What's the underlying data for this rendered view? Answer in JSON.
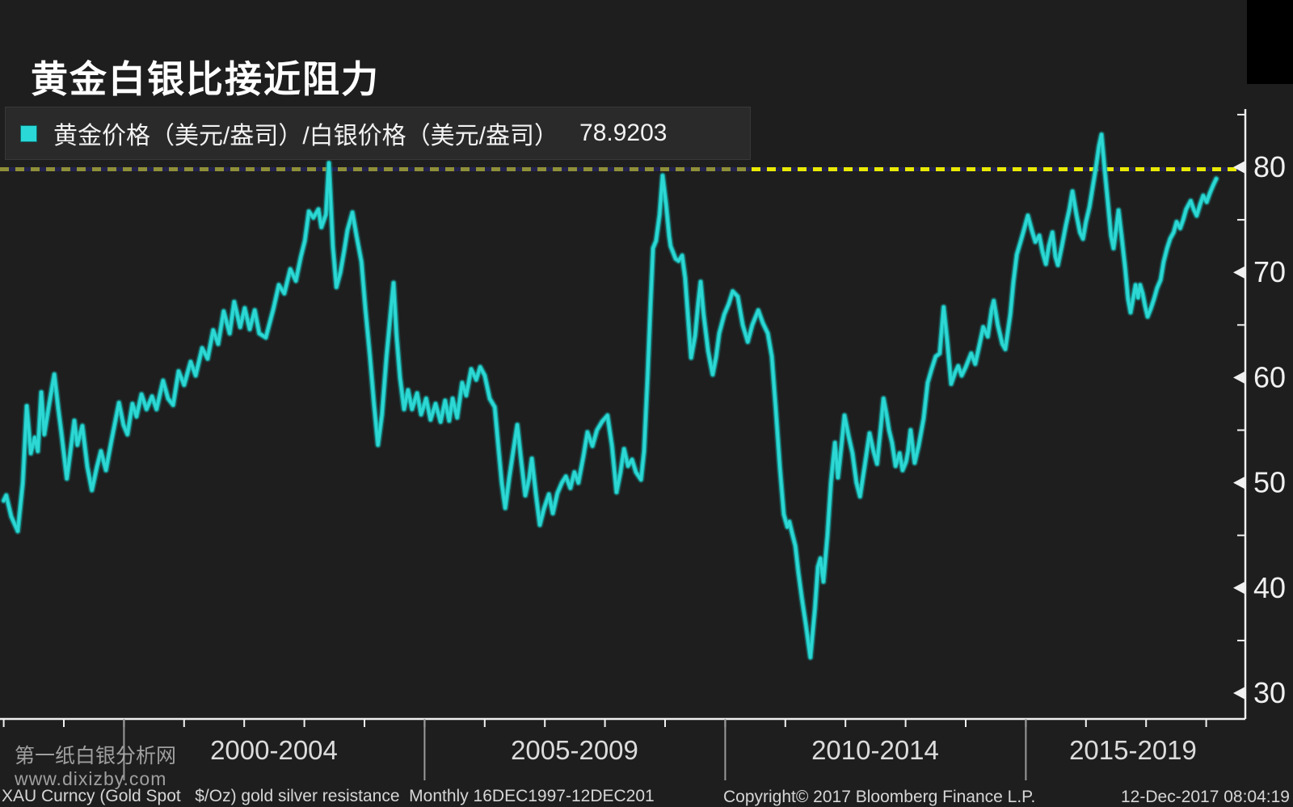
{
  "title": {
    "text": "黄金白银比接近阻力"
  },
  "legend": {
    "label": "黄金价格（美元/盎司）/白银价格（美元/盎司）",
    "value": "78.9203",
    "marker_color": "#2bd8d8"
  },
  "x_axis": {
    "period_labels": [
      "2000-2004",
      "2005-2009",
      "2010-2014",
      "2015-2019"
    ],
    "divider_years": [
      2000,
      2005,
      2010,
      2015
    ]
  },
  "footer": {
    "left": "XAU Curncy (Gold Spot   $/Oz) gold silver resistance  Monthly 16DEC1997-12DEC201",
    "copyright": "Copyright© 2017 Bloomberg Finance L.P.",
    "timestamp": "12-Dec-2017 08:04:19"
  },
  "watermark": {
    "line1": "第一纸白银分析网",
    "line2": "www.dixizby.com"
  },
  "colors": {
    "background": "#1e1e1e",
    "line": "#2dd8d4",
    "resistance_bright": "#e9e905",
    "resistance_muted": "#8f8f3a",
    "axis": "#f0f0f0"
  },
  "chart_data": {
    "type": "line",
    "title": "黄金白银比接近阻力",
    "series_name": "黄金价格（美元/盎司）/白银价格（美元/盎司）",
    "last_value": 78.9203,
    "resistance_level": 80,
    "x_unit": "months since Dec-1997, monthly data 16DEC1997-12DEC2017",
    "x_period_labels": [
      "2000-2004",
      "2005-2009",
      "2010-2014",
      "2015-2019"
    ],
    "ylim": [
      27.5,
      85.5
    ],
    "y_axis": {
      "major_ticks": [
        80,
        70,
        60,
        50,
        40,
        30
      ],
      "minor_ticks": [
        85,
        75,
        65,
        55,
        45,
        35
      ]
    },
    "grid": false,
    "legend_position": "top-left",
    "points": [
      [
        0,
        48.3
      ],
      [
        0.5,
        48.8
      ],
      [
        1.5,
        46.8
      ],
      [
        2.8,
        45.4
      ],
      [
        3.8,
        50.0
      ],
      [
        4.6,
        57.3
      ],
      [
        5.4,
        52.8
      ],
      [
        6.2,
        54.3
      ],
      [
        6.8,
        53.0
      ],
      [
        7.5,
        58.6
      ],
      [
        8.1,
        54.6
      ],
      [
        8.9,
        57.0
      ],
      [
        10.1,
        60.3
      ],
      [
        10.9,
        57.0
      ],
      [
        11.5,
        54.8
      ],
      [
        12.6,
        50.4
      ],
      [
        13.6,
        54.0
      ],
      [
        14.1,
        55.9
      ],
      [
        14.7,
        53.6
      ],
      [
        15.7,
        55.4
      ],
      [
        16.7,
        51.5
      ],
      [
        17.6,
        49.3
      ],
      [
        18.6,
        51.5
      ],
      [
        19.4,
        53.0
      ],
      [
        20.4,
        51.2
      ],
      [
        21.5,
        54.0
      ],
      [
        23.0,
        57.6
      ],
      [
        23.9,
        55.5
      ],
      [
        24.7,
        54.6
      ],
      [
        25.7,
        57.5
      ],
      [
        26.5,
        56.3
      ],
      [
        27.5,
        58.4
      ],
      [
        28.5,
        57.0
      ],
      [
        29.6,
        58.2
      ],
      [
        30.5,
        57.0
      ],
      [
        31.8,
        59.7
      ],
      [
        32.8,
        58.0
      ],
      [
        33.8,
        57.4
      ],
      [
        34.9,
        60.6
      ],
      [
        36.0,
        59.3
      ],
      [
        37.3,
        61.5
      ],
      [
        38.3,
        60.2
      ],
      [
        39.6,
        62.8
      ],
      [
        40.7,
        61.8
      ],
      [
        41.8,
        64.5
      ],
      [
        42.8,
        63.2
      ],
      [
        43.9,
        66.3
      ],
      [
        45.1,
        64.2
      ],
      [
        46.0,
        67.2
      ],
      [
        47.2,
        64.8
      ],
      [
        48.1,
        66.6
      ],
      [
        49.1,
        64.6
      ],
      [
        50.1,
        66.4
      ],
      [
        51.0,
        64.2
      ],
      [
        52.3,
        63.8
      ],
      [
        53.8,
        66.5
      ],
      [
        54.9,
        68.8
      ],
      [
        56.0,
        68.0
      ],
      [
        57.2,
        70.3
      ],
      [
        58.3,
        69.2
      ],
      [
        59.3,
        71.5
      ],
      [
        60.1,
        73.0
      ],
      [
        60.9,
        75.8
      ],
      [
        61.8,
        75.2
      ],
      [
        62.8,
        76.0
      ],
      [
        63.4,
        74.3
      ],
      [
        64.3,
        75.5
      ],
      [
        64.9,
        80.4
      ],
      [
        65.7,
        72.5
      ],
      [
        66.4,
        68.6
      ],
      [
        67.2,
        70.0
      ],
      [
        68.0,
        72.2
      ],
      [
        68.6,
        74.0
      ],
      [
        69.6,
        75.7
      ],
      [
        70.4,
        73.5
      ],
      [
        71.4,
        71.0
      ],
      [
        72.2,
        66.5
      ],
      [
        73.1,
        62.0
      ],
      [
        73.9,
        57.5
      ],
      [
        74.7,
        53.6
      ],
      [
        75.5,
        56.5
      ],
      [
        76.4,
        62.0
      ],
      [
        77.2,
        66.0
      ],
      [
        77.8,
        69.0
      ],
      [
        78.4,
        64.0
      ],
      [
        79.1,
        60.0
      ],
      [
        79.9,
        57.0
      ],
      [
        80.7,
        58.8
      ],
      [
        81.5,
        57.0
      ],
      [
        82.5,
        58.5
      ],
      [
        83.3,
        56.5
      ],
      [
        84.3,
        58.0
      ],
      [
        85.2,
        56.0
      ],
      [
        86.2,
        57.5
      ],
      [
        87.2,
        55.8
      ],
      [
        88.1,
        57.8
      ],
      [
        88.9,
        55.9
      ],
      [
        89.6,
        58.0
      ],
      [
        90.5,
        56.2
      ],
      [
        91.5,
        59.5
      ],
      [
        92.3,
        58.3
      ],
      [
        93.3,
        60.8
      ],
      [
        94.3,
        59.8
      ],
      [
        95.1,
        61.0
      ],
      [
        96.0,
        60.2
      ],
      [
        97.0,
        58.0
      ],
      [
        98.0,
        57.2
      ],
      [
        98.8,
        53.0
      ],
      [
        99.4,
        50.0
      ],
      [
        100.1,
        47.6
      ],
      [
        100.9,
        50.5
      ],
      [
        101.7,
        53.0
      ],
      [
        102.5,
        55.5
      ],
      [
        103.3,
        52.0
      ],
      [
        104.1,
        48.8
      ],
      [
        104.9,
        50.5
      ],
      [
        105.4,
        52.3
      ],
      [
        106.2,
        49.0
      ],
      [
        107.0,
        46.0
      ],
      [
        107.8,
        47.5
      ],
      [
        108.8,
        48.9
      ],
      [
        109.6,
        47.1
      ],
      [
        110.5,
        49.0
      ],
      [
        111.4,
        50.0
      ],
      [
        112.2,
        50.6
      ],
      [
        113.1,
        49.5
      ],
      [
        113.9,
        51.0
      ],
      [
        114.7,
        50.0
      ],
      [
        115.7,
        52.5
      ],
      [
        116.5,
        54.8
      ],
      [
        117.5,
        53.5
      ],
      [
        118.4,
        55.0
      ],
      [
        119.4,
        55.8
      ],
      [
        120.5,
        56.4
      ],
      [
        121.4,
        53.5
      ],
      [
        122.3,
        49.1
      ],
      [
        123.1,
        51.0
      ],
      [
        123.8,
        53.2
      ],
      [
        124.6,
        51.6
      ],
      [
        125.4,
        52.2
      ],
      [
        126.2,
        51.0
      ],
      [
        127.2,
        50.3
      ],
      [
        127.8,
        53.0
      ],
      [
        128.5,
        60.0
      ],
      [
        129.1,
        67.0
      ],
      [
        129.6,
        72.3
      ],
      [
        130.2,
        73.0
      ],
      [
        130.9,
        75.5
      ],
      [
        131.5,
        79.2
      ],
      [
        132.2,
        76.5
      ],
      [
        132.8,
        73.5
      ],
      [
        133.1,
        72.5
      ],
      [
        134.1,
        71.3
      ],
      [
        134.7,
        71.1
      ],
      [
        135.4,
        71.6
      ],
      [
        136.0,
        69.5
      ],
      [
        136.7,
        65.0
      ],
      [
        137.2,
        61.9
      ],
      [
        138.0,
        64.0
      ],
      [
        138.6,
        67.0
      ],
      [
        139.1,
        69.1
      ],
      [
        139.7,
        66.0
      ],
      [
        140.6,
        62.5
      ],
      [
        141.5,
        60.3
      ],
      [
        142.2,
        62.0
      ],
      [
        142.8,
        64.2
      ],
      [
        143.8,
        66.0
      ],
      [
        144.7,
        67.0
      ],
      [
        145.5,
        68.2
      ],
      [
        146.5,
        67.7
      ],
      [
        147.5,
        65.0
      ],
      [
        148.5,
        63.4
      ],
      [
        149.4,
        65.0
      ],
      [
        150.6,
        66.4
      ],
      [
        151.5,
        65.2
      ],
      [
        152.5,
        64.2
      ],
      [
        153.3,
        62.0
      ],
      [
        154.1,
        57.0
      ],
      [
        154.9,
        51.5
      ],
      [
        155.7,
        47.0
      ],
      [
        156.4,
        45.8
      ],
      [
        156.8,
        46.3
      ],
      [
        157.3,
        45.3
      ],
      [
        158.0,
        44.0
      ],
      [
        158.6,
        41.5
      ],
      [
        159.3,
        39.0
      ],
      [
        160.1,
        36.5
      ],
      [
        161.0,
        33.4
      ],
      [
        161.9,
        38.0
      ],
      [
        162.5,
        42.0
      ],
      [
        163.0,
        42.8
      ],
      [
        163.6,
        40.6
      ],
      [
        164.4,
        45.0
      ],
      [
        165.1,
        50.0
      ],
      [
        165.9,
        53.8
      ],
      [
        166.5,
        50.5
      ],
      [
        167.2,
        53.5
      ],
      [
        167.8,
        56.4
      ],
      [
        168.6,
        54.5
      ],
      [
        169.4,
        52.8
      ],
      [
        170.2,
        50.0
      ],
      [
        170.9,
        48.7
      ],
      [
        171.8,
        51.5
      ],
      [
        172.8,
        54.7
      ],
      [
        173.6,
        53.0
      ],
      [
        174.3,
        51.8
      ],
      [
        175.1,
        55.5
      ],
      [
        175.6,
        58.0
      ],
      [
        176.2,
        56.5
      ],
      [
        176.7,
        55.0
      ],
      [
        177.3,
        53.8
      ],
      [
        178.0,
        51.6
      ],
      [
        178.8,
        52.8
      ],
      [
        179.4,
        51.2
      ],
      [
        180.1,
        52.0
      ],
      [
        180.5,
        53.0
      ],
      [
        181.0,
        55.0
      ],
      [
        181.8,
        51.9
      ],
      [
        182.6,
        53.5
      ],
      [
        183.6,
        56.1
      ],
      [
        184.4,
        59.5
      ],
      [
        185.2,
        60.8
      ],
      [
        186.0,
        62.0
      ],
      [
        186.8,
        62.3
      ],
      [
        187.6,
        66.7
      ],
      [
        188.3,
        63.5
      ],
      [
        189.1,
        59.4
      ],
      [
        189.9,
        60.5
      ],
      [
        190.5,
        61.1
      ],
      [
        191.2,
        60.2
      ],
      [
        192.0,
        61.0
      ],
      [
        193.1,
        62.3
      ],
      [
        193.9,
        61.3
      ],
      [
        194.7,
        63.0
      ],
      [
        195.5,
        64.8
      ],
      [
        196.4,
        63.9
      ],
      [
        197.2,
        66.5
      ],
      [
        197.6,
        67.3
      ],
      [
        198.4,
        65.0
      ],
      [
        199.3,
        63.2
      ],
      [
        199.9,
        62.7
      ],
      [
        200.9,
        66.0
      ],
      [
        201.5,
        69.0
      ],
      [
        202.2,
        71.7
      ],
      [
        203.0,
        73.0
      ],
      [
        203.6,
        74.0
      ],
      [
        204.4,
        75.4
      ],
      [
        205.2,
        74.0
      ],
      [
        205.9,
        72.9
      ],
      [
        206.7,
        73.5
      ],
      [
        207.3,
        72.0
      ],
      [
        208.0,
        70.8
      ],
      [
        208.6,
        72.5
      ],
      [
        209.3,
        73.8
      ],
      [
        209.9,
        71.5
      ],
      [
        210.4,
        70.7
      ],
      [
        211.2,
        72.5
      ],
      [
        212.0,
        74.5
      ],
      [
        212.7,
        76.0
      ],
      [
        213.3,
        77.7
      ],
      [
        214.1,
        75.5
      ],
      [
        214.8,
        73.8
      ],
      [
        215.4,
        73.2
      ],
      [
        216.0,
        74.8
      ],
      [
        216.7,
        76.2
      ],
      [
        217.3,
        78.0
      ],
      [
        218.0,
        80.0
      ],
      [
        218.6,
        82.0
      ],
      [
        219.1,
        83.1
      ],
      [
        219.7,
        80.0
      ],
      [
        220.4,
        76.5
      ],
      [
        221.0,
        73.5
      ],
      [
        221.5,
        72.3
      ],
      [
        222.0,
        74.0
      ],
      [
        222.5,
        75.9
      ],
      [
        223.1,
        73.5
      ],
      [
        223.8,
        70.5
      ],
      [
        224.4,
        67.5
      ],
      [
        224.9,
        66.2
      ],
      [
        225.4,
        67.5
      ],
      [
        225.9,
        68.8
      ],
      [
        226.4,
        67.6
      ],
      [
        226.8,
        68.8
      ],
      [
        227.3,
        68.0
      ],
      [
        227.8,
        66.8
      ],
      [
        228.3,
        65.8
      ],
      [
        228.9,
        66.5
      ],
      [
        229.6,
        67.5
      ],
      [
        230.2,
        68.5
      ],
      [
        230.9,
        69.3
      ],
      [
        231.5,
        71.0
      ],
      [
        232.2,
        72.3
      ],
      [
        232.8,
        73.2
      ],
      [
        233.5,
        73.8
      ],
      [
        234.1,
        74.8
      ],
      [
        234.8,
        74.2
      ],
      [
        235.4,
        75.0
      ],
      [
        236.0,
        76.0
      ],
      [
        236.9,
        76.8
      ],
      [
        237.5,
        76.0
      ],
      [
        238.1,
        75.4
      ],
      [
        238.8,
        76.5
      ],
      [
        239.4,
        77.3
      ],
      [
        240.1,
        76.7
      ],
      [
        240.7,
        77.5
      ],
      [
        241.4,
        78.3
      ],
      [
        242.0,
        78.9
      ]
    ]
  }
}
